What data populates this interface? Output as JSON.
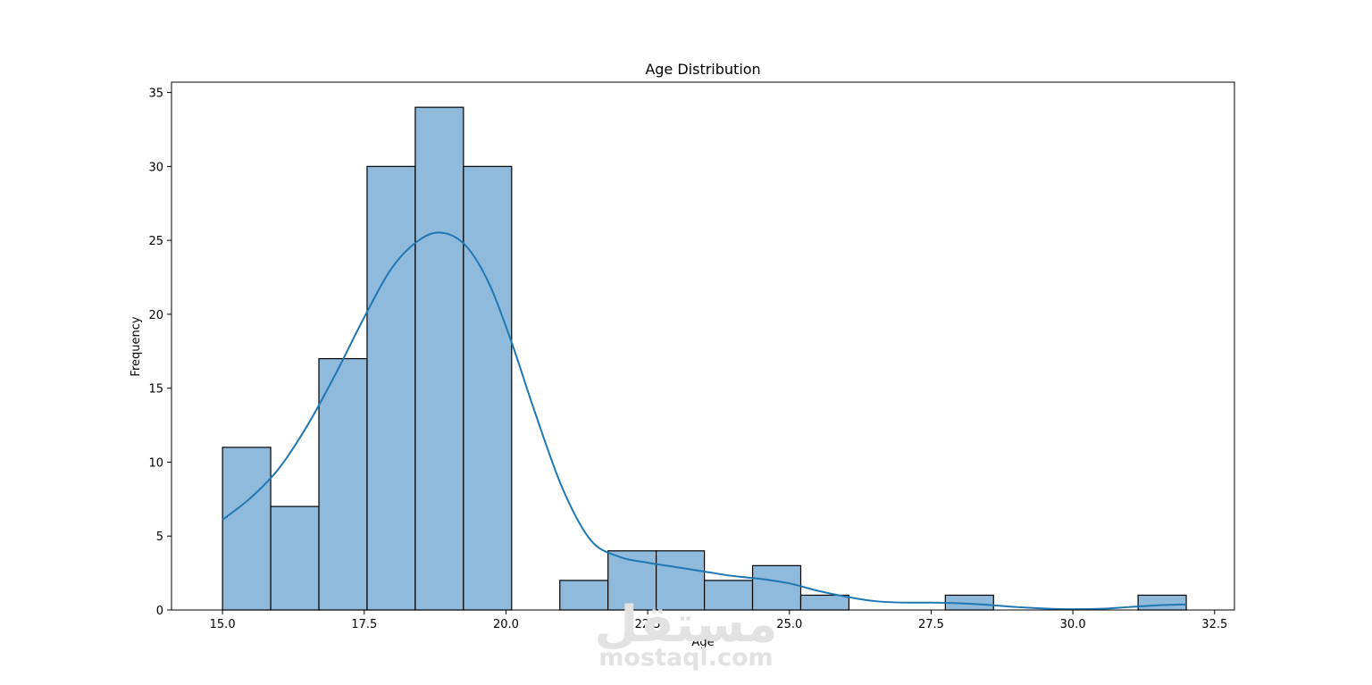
{
  "chart_data": {
    "type": "bar",
    "title": "Age Distribution",
    "xlabel": "Age",
    "ylabel": "Frequency",
    "xlim": [
      14.1,
      32.85
    ],
    "ylim": [
      0,
      35.7
    ],
    "xticks": [
      15.0,
      17.5,
      20.0,
      22.5,
      25.0,
      27.5,
      30.0,
      32.5
    ],
    "xtick_labels": [
      "15.0",
      "17.5",
      "20.0",
      "22.5",
      "25.0",
      "27.5",
      "30.0",
      "32.5"
    ],
    "yticks": [
      0,
      5,
      10,
      15,
      20,
      25,
      30,
      35
    ],
    "ytick_labels": [
      "0",
      "5",
      "10",
      "15",
      "20",
      "25",
      "30",
      "35"
    ],
    "bins": {
      "edges": [
        15.0,
        15.85,
        16.7,
        17.55,
        18.4,
        19.25,
        20.1,
        20.95,
        21.8,
        22.65,
        23.5,
        24.35,
        25.2,
        26.05,
        26.9,
        27.75,
        28.6,
        29.45,
        30.3,
        31.15,
        32.0
      ],
      "counts": [
        11,
        7,
        17,
        30,
        34,
        30,
        0,
        2,
        4,
        4,
        2,
        3,
        1,
        0,
        0,
        1,
        0,
        0,
        0,
        1
      ]
    },
    "kde": {
      "x": [
        15.0,
        15.5,
        16.0,
        16.5,
        17.0,
        17.5,
        18.0,
        18.5,
        18.9,
        19.3,
        19.7,
        20.1,
        20.5,
        21.0,
        21.5,
        22.0,
        22.5,
        23.0,
        23.5,
        24.0,
        24.5,
        25.0,
        25.5,
        26.0,
        26.5,
        27.0,
        27.5,
        28.0,
        28.5,
        29.0,
        29.5,
        30.0,
        30.5,
        31.0,
        31.5,
        32.0
      ],
      "y": [
        6.1,
        7.6,
        9.6,
        12.5,
        16.0,
        19.8,
        23.2,
        25.1,
        25.5,
        24.6,
        22.1,
        18.1,
        13.5,
        8.2,
        4.7,
        3.6,
        3.2,
        2.9,
        2.6,
        2.3,
        2.1,
        1.8,
        1.3,
        0.9,
        0.6,
        0.5,
        0.5,
        0.45,
        0.35,
        0.2,
        0.1,
        0.05,
        0.08,
        0.2,
        0.32,
        0.38
      ]
    },
    "bar_fill": "#8fbadb",
    "bar_edge": "#000000",
    "kde_color": "#1f77b4",
    "grid": false,
    "legend": "none"
  },
  "watermark": {
    "arabic": "مستقل",
    "latin": "mostaql.com",
    "color": "#e2e2e2"
  }
}
